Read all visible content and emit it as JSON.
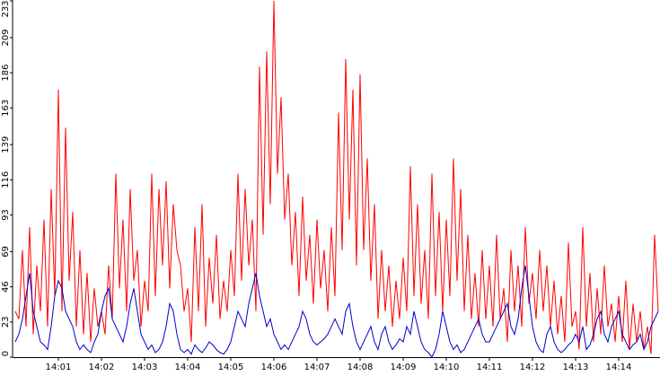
{
  "chart_data": {
    "type": "line",
    "ylim": [
      0,
      233
    ],
    "yticks": [
      0,
      23,
      46,
      69,
      93,
      116,
      139,
      163,
      186,
      209,
      233
    ],
    "categories": [
      null,
      null,
      null,
      null,
      null,
      null,
      null,
      null,
      null,
      null,
      null,
      null,
      "14:01",
      null,
      null,
      null,
      null,
      null,
      null,
      null,
      null,
      null,
      null,
      null,
      "14:02",
      null,
      null,
      null,
      null,
      null,
      null,
      null,
      null,
      null,
      null,
      null,
      "14:03",
      null,
      null,
      null,
      null,
      null,
      null,
      null,
      null,
      null,
      null,
      null,
      "14:04",
      null,
      null,
      null,
      null,
      null,
      null,
      null,
      null,
      null,
      null,
      null,
      "14:05",
      null,
      null,
      null,
      null,
      null,
      null,
      null,
      null,
      null,
      null,
      null,
      "14:06",
      null,
      null,
      null,
      null,
      null,
      null,
      null,
      null,
      null,
      null,
      null,
      "14:07",
      null,
      null,
      null,
      null,
      null,
      null,
      null,
      null,
      null,
      null,
      null,
      "14:08",
      null,
      null,
      null,
      null,
      null,
      null,
      null,
      null,
      null,
      null,
      null,
      "14:09",
      null,
      null,
      null,
      null,
      null,
      null,
      null,
      null,
      null,
      null,
      null,
      "14:10",
      null,
      null,
      null,
      null,
      null,
      null,
      null,
      null,
      null,
      null,
      null,
      "14:11",
      null,
      null,
      null,
      null,
      null,
      null,
      null,
      null,
      null,
      null,
      null,
      "14:12",
      null,
      null,
      null,
      null,
      null,
      null,
      null,
      null,
      null,
      null,
      null,
      "14:13",
      null,
      null,
      null,
      null,
      null,
      null,
      null,
      null,
      null,
      null,
      null,
      "14:14",
      null,
      null,
      null,
      null,
      null,
      null,
      null,
      null,
      null,
      null,
      null
    ],
    "series": [
      {
        "color": "#ff0000",
        "values": [
          30,
          25,
          70,
          20,
          85,
          15,
          60,
          30,
          90,
          20,
          110,
          40,
          175,
          30,
          150,
          50,
          95,
          20,
          70,
          15,
          55,
          10,
          45,
          20,
          30,
          15,
          60,
          25,
          120,
          45,
          90,
          30,
          110,
          50,
          70,
          20,
          50,
          30,
          120,
          40,
          110,
          60,
          115,
          45,
          100,
          70,
          60,
          30,
          45,
          10,
          85,
          30,
          100,
          20,
          65,
          35,
          80,
          25,
          50,
          30,
          70,
          40,
          120,
          50,
          110,
          60,
          90,
          30,
          190,
          80,
          200,
          100,
          233,
          120,
          170,
          90,
          120,
          60,
          95,
          40,
          105,
          50,
          80,
          35,
          90,
          45,
          70,
          30,
          85,
          40,
          160,
          70,
          195,
          90,
          175,
          60,
          185,
          70,
          130,
          50,
          100,
          25,
          70,
          30,
          60,
          20,
          50,
          25,
          65,
          30,
          125,
          40,
          100,
          35,
          70,
          25,
          120,
          40,
          95,
          30,
          90,
          40,
          130,
          50,
          110,
          30,
          80,
          25,
          55,
          20,
          70,
          25,
          60,
          20,
          80,
          25,
          45,
          10,
          70,
          30,
          60,
          20,
          85,
          35,
          55,
          25,
          70,
          30,
          60,
          20,
          50,
          15,
          40,
          10,
          75,
          20,
          30,
          5,
          85,
          20,
          55,
          10,
          45,
          15,
          60,
          20,
          35,
          10,
          40,
          10,
          50,
          5,
          35,
          10,
          30,
          5,
          20,
          2,
          80,
          30
        ]
      },
      {
        "color": "#0000cc",
        "values": [
          10,
          15,
          25,
          40,
          55,
          30,
          20,
          10,
          8,
          5,
          20,
          40,
          50,
          45,
          30,
          25,
          20,
          10,
          5,
          8,
          5,
          3,
          10,
          15,
          30,
          40,
          45,
          25,
          20,
          15,
          10,
          20,
          35,
          45,
          30,
          15,
          10,
          5,
          8,
          3,
          5,
          10,
          20,
          35,
          30,
          15,
          5,
          3,
          5,
          2,
          8,
          5,
          3,
          6,
          10,
          8,
          5,
          3,
          2,
          5,
          10,
          20,
          30,
          25,
          20,
          35,
          45,
          55,
          40,
          30,
          20,
          25,
          15,
          10,
          5,
          8,
          5,
          10,
          15,
          20,
          30,
          25,
          15,
          10,
          8,
          10,
          12,
          15,
          20,
          25,
          20,
          15,
          30,
          35,
          20,
          10,
          5,
          10,
          15,
          20,
          10,
          5,
          15,
          20,
          10,
          5,
          8,
          12,
          10,
          20,
          15,
          30,
          20,
          10,
          5,
          3,
          0,
          5,
          15,
          30,
          20,
          10,
          5,
          8,
          3,
          5,
          10,
          15,
          20,
          25,
          15,
          10,
          10,
          15,
          20,
          25,
          30,
          35,
          20,
          15,
          25,
          45,
          60,
          40,
          20,
          10,
          5,
          3,
          15,
          20,
          10,
          5,
          3,
          5,
          8,
          10,
          15,
          10,
          20,
          5,
          8,
          15,
          25,
          30,
          15,
          10,
          20,
          25,
          30,
          15,
          10,
          5,
          8,
          10,
          15,
          5,
          10,
          20,
          25,
          30
        ]
      }
    ]
  }
}
